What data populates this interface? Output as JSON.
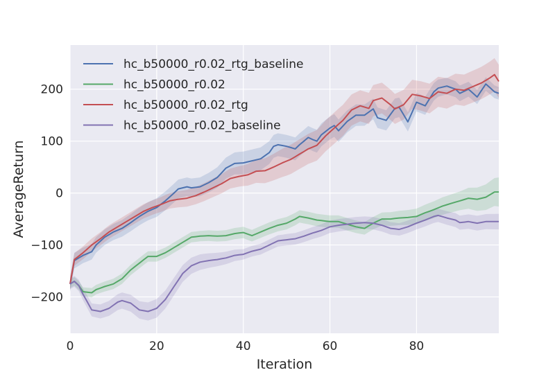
{
  "chart_data": {
    "type": "line",
    "title": "",
    "xlabel": "Iteration",
    "ylabel": "AverageReturn",
    "xlim": [
      0,
      99
    ],
    "ylim": [
      -270,
      285
    ],
    "xticks": [
      0,
      20,
      40,
      60,
      80
    ],
    "yticks": [
      -200,
      -100,
      0,
      100,
      200
    ],
    "xtick_labels": [
      "0",
      "20",
      "40",
      "60",
      "80"
    ],
    "ytick_labels": [
      "−200",
      "−100",
      "0",
      "100",
      "200"
    ],
    "grid": true,
    "legend_position": "top-left",
    "background": "#eaeaf2",
    "series": [
      {
        "name": "hc_b50000_r0.02_rtg_baseline",
        "color": "#4c72b0",
        "knots": [
          [
            0,
            -175
          ],
          [
            1,
            -130
          ],
          [
            2,
            -125
          ],
          [
            3,
            -120
          ],
          [
            5,
            -113
          ],
          [
            6,
            -100
          ],
          [
            8,
            -85
          ],
          [
            10,
            -75
          ],
          [
            12,
            -68
          ],
          [
            14,
            -57
          ],
          [
            16,
            -45
          ],
          [
            18,
            -35
          ],
          [
            20,
            -28
          ],
          [
            22,
            -15
          ],
          [
            24,
            0
          ],
          [
            25,
            8
          ],
          [
            27,
            12
          ],
          [
            28,
            10
          ],
          [
            30,
            12
          ],
          [
            32,
            20
          ],
          [
            34,
            30
          ],
          [
            36,
            48
          ],
          [
            38,
            57
          ],
          [
            40,
            58
          ],
          [
            42,
            62
          ],
          [
            44,
            66
          ],
          [
            46,
            78
          ],
          [
            47,
            90
          ],
          [
            48,
            93
          ],
          [
            50,
            90
          ],
          [
            52,
            85
          ],
          [
            53,
            93
          ],
          [
            55,
            107
          ],
          [
            56,
            103
          ],
          [
            57,
            100
          ],
          [
            58,
            112
          ],
          [
            60,
            125
          ],
          [
            61,
            130
          ],
          [
            62,
            120
          ],
          [
            64,
            138
          ],
          [
            66,
            150
          ],
          [
            68,
            150
          ],
          [
            70,
            162
          ],
          [
            71,
            145
          ],
          [
            73,
            140
          ],
          [
            75,
            163
          ],
          [
            76,
            165
          ],
          [
            78,
            137
          ],
          [
            80,
            175
          ],
          [
            82,
            168
          ],
          [
            84,
            195
          ],
          [
            85,
            202
          ],
          [
            87,
            206
          ],
          [
            89,
            200
          ],
          [
            90,
            192
          ],
          [
            92,
            200
          ],
          [
            94,
            185
          ],
          [
            96,
            210
          ],
          [
            98,
            195
          ],
          [
            99,
            192
          ]
        ],
        "band": [
          [
            0,
            15
          ],
          [
            8,
            15
          ],
          [
            20,
            18
          ],
          [
            30,
            18
          ],
          [
            40,
            22
          ],
          [
            50,
            22
          ],
          [
            60,
            22
          ],
          [
            70,
            20
          ],
          [
            80,
            18
          ],
          [
            90,
            15
          ],
          [
            99,
            12
          ]
        ]
      },
      {
        "name": "hc_b50000_r0.02",
        "color": "#55a868",
        "knots": [
          [
            0,
            -175
          ],
          [
            1,
            -170
          ],
          [
            2,
            -178
          ],
          [
            3,
            -190
          ],
          [
            5,
            -192
          ],
          [
            6,
            -186
          ],
          [
            8,
            -180
          ],
          [
            10,
            -175
          ],
          [
            12,
            -165
          ],
          [
            14,
            -148
          ],
          [
            16,
            -135
          ],
          [
            18,
            -122
          ],
          [
            20,
            -122
          ],
          [
            22,
            -115
          ],
          [
            24,
            -105
          ],
          [
            26,
            -95
          ],
          [
            28,
            -85
          ],
          [
            30,
            -83
          ],
          [
            32,
            -82
          ],
          [
            34,
            -83
          ],
          [
            36,
            -82
          ],
          [
            38,
            -78
          ],
          [
            40,
            -76
          ],
          [
            42,
            -82
          ],
          [
            44,
            -75
          ],
          [
            46,
            -68
          ],
          [
            48,
            -62
          ],
          [
            50,
            -58
          ],
          [
            52,
            -50
          ],
          [
            53,
            -45
          ],
          [
            55,
            -48
          ],
          [
            57,
            -52
          ],
          [
            60,
            -55
          ],
          [
            62,
            -55
          ],
          [
            64,
            -60
          ],
          [
            66,
            -65
          ],
          [
            68,
            -68
          ],
          [
            70,
            -58
          ],
          [
            72,
            -50
          ],
          [
            74,
            -50
          ],
          [
            76,
            -48
          ],
          [
            78,
            -47
          ],
          [
            80,
            -45
          ],
          [
            82,
            -38
          ],
          [
            84,
            -32
          ],
          [
            86,
            -25
          ],
          [
            88,
            -20
          ],
          [
            90,
            -15
          ],
          [
            92,
            -10
          ],
          [
            94,
            -12
          ],
          [
            96,
            -8
          ],
          [
            98,
            2
          ],
          [
            99,
            2
          ]
        ],
        "band": [
          [
            0,
            8
          ],
          [
            10,
            10
          ],
          [
            30,
            10
          ],
          [
            50,
            12
          ],
          [
            70,
            12
          ],
          [
            90,
            18
          ],
          [
            99,
            28
          ]
        ]
      },
      {
        "name": "hc_b50000_r0.02_rtg",
        "color": "#c44e52",
        "knots": [
          [
            0,
            -175
          ],
          [
            1,
            -128
          ],
          [
            3,
            -115
          ],
          [
            5,
            -100
          ],
          [
            7,
            -88
          ],
          [
            9,
            -75
          ],
          [
            11,
            -65
          ],
          [
            13,
            -55
          ],
          [
            15,
            -45
          ],
          [
            17,
            -35
          ],
          [
            19,
            -28
          ],
          [
            21,
            -22
          ],
          [
            23,
            -15
          ],
          [
            25,
            -12
          ],
          [
            27,
            -10
          ],
          [
            29,
            -5
          ],
          [
            31,
            2
          ],
          [
            33,
            10
          ],
          [
            35,
            18
          ],
          [
            37,
            28
          ],
          [
            39,
            32
          ],
          [
            41,
            35
          ],
          [
            43,
            42
          ],
          [
            45,
            43
          ],
          [
            47,
            50
          ],
          [
            49,
            58
          ],
          [
            51,
            65
          ],
          [
            53,
            75
          ],
          [
            55,
            85
          ],
          [
            57,
            92
          ],
          [
            59,
            110
          ],
          [
            61,
            125
          ],
          [
            63,
            140
          ],
          [
            65,
            160
          ],
          [
            67,
            168
          ],
          [
            69,
            163
          ],
          [
            70,
            178
          ],
          [
            72,
            183
          ],
          [
            74,
            170
          ],
          [
            75,
            162
          ],
          [
            77,
            170
          ],
          [
            79,
            190
          ],
          [
            81,
            187
          ],
          [
            83,
            182
          ],
          [
            85,
            195
          ],
          [
            87,
            192
          ],
          [
            89,
            200
          ],
          [
            91,
            198
          ],
          [
            93,
            205
          ],
          [
            95,
            212
          ],
          [
            97,
            222
          ],
          [
            98,
            228
          ],
          [
            99,
            215
          ]
        ],
        "band": [
          [
            0,
            12
          ],
          [
            20,
            14
          ],
          [
            40,
            20
          ],
          [
            50,
            28
          ],
          [
            60,
            30
          ],
          [
            70,
            30
          ],
          [
            80,
            28
          ],
          [
            90,
            30
          ],
          [
            99,
            32
          ]
        ]
      },
      {
        "name": "hc_b50000_r0.02_baseline",
        "color": "#8172b2",
        "knots": [
          [
            0,
            -175
          ],
          [
            1,
            -170
          ],
          [
            2,
            -178
          ],
          [
            3,
            -195
          ],
          [
            4,
            -210
          ],
          [
            5,
            -225
          ],
          [
            7,
            -228
          ],
          [
            9,
            -222
          ],
          [
            11,
            -210
          ],
          [
            12,
            -207
          ],
          [
            14,
            -212
          ],
          [
            16,
            -225
          ],
          [
            18,
            -228
          ],
          [
            20,
            -222
          ],
          [
            22,
            -205
          ],
          [
            24,
            -180
          ],
          [
            26,
            -155
          ],
          [
            28,
            -140
          ],
          [
            30,
            -133
          ],
          [
            32,
            -130
          ],
          [
            34,
            -128
          ],
          [
            36,
            -125
          ],
          [
            38,
            -120
          ],
          [
            40,
            -118
          ],
          [
            42,
            -112
          ],
          [
            44,
            -108
          ],
          [
            46,
            -100
          ],
          [
            48,
            -92
          ],
          [
            50,
            -90
          ],
          [
            52,
            -88
          ],
          [
            54,
            -83
          ],
          [
            56,
            -77
          ],
          [
            58,
            -72
          ],
          [
            60,
            -65
          ],
          [
            62,
            -62
          ],
          [
            64,
            -60
          ],
          [
            66,
            -58
          ],
          [
            68,
            -57
          ],
          [
            70,
            -58
          ],
          [
            72,
            -62
          ],
          [
            74,
            -68
          ],
          [
            76,
            -70
          ],
          [
            78,
            -65
          ],
          [
            80,
            -58
          ],
          [
            82,
            -52
          ],
          [
            84,
            -45
          ],
          [
            85,
            -43
          ],
          [
            87,
            -48
          ],
          [
            89,
            -52
          ],
          [
            90,
            -57
          ],
          [
            92,
            -55
          ],
          [
            94,
            -58
          ],
          [
            96,
            -55
          ],
          [
            98,
            -55
          ],
          [
            99,
            -55
          ]
        ],
        "band": [
          [
            0,
            10
          ],
          [
            10,
            15
          ],
          [
            20,
            18
          ],
          [
            30,
            15
          ],
          [
            40,
            10
          ],
          [
            60,
            12
          ],
          [
            80,
            12
          ],
          [
            99,
            15
          ]
        ]
      }
    ]
  }
}
